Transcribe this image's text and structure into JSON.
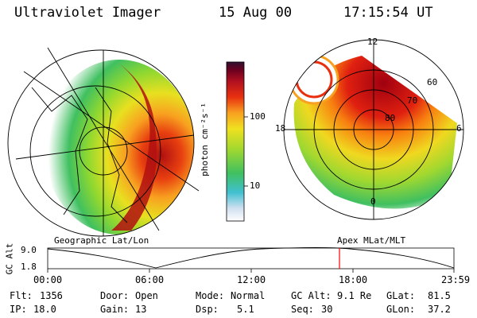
{
  "header": {
    "instrument": "Ultraviolet Imager",
    "date": "15 Aug 00",
    "time": "17:15:54 UT"
  },
  "panels": {
    "left_caption": "Geographic Lat/Lon",
    "right_caption": "Apex MLat/MLT",
    "right_mlt_labels": [
      "12",
      "18",
      "6",
      "0"
    ],
    "right_lat_labels": [
      "60",
      "70",
      "80"
    ]
  },
  "colorbar": {
    "unit_label": "photon cm⁻²s⁻¹",
    "ticks": [
      "100",
      "10"
    ]
  },
  "altitude_plot": {
    "axis_label": "GC Alt",
    "y_ticks": [
      "9.0",
      "1.8"
    ],
    "time_ticks": [
      "00:00",
      "06:00",
      "12:00",
      "18:00",
      "23:59"
    ],
    "current_time_marker": "17:15",
    "marker_color": "#ff0000"
  },
  "status": [
    {
      "label": "Flt:",
      "value": "1356"
    },
    {
      "label": "IP:",
      "value": "18.0"
    },
    {
      "label": "Door:",
      "value": "Open"
    },
    {
      "label": "Gain:",
      "value": "13"
    },
    {
      "label": "Mode:",
      "value": "Normal"
    },
    {
      "label": "Dsp:",
      "value": "5.1"
    },
    {
      "label": "GC Alt:",
      "value": "9.1 Re"
    },
    {
      "label": "Seq:",
      "value": "30"
    },
    {
      "label": "GLat:",
      "value": "81.5"
    },
    {
      "label": "GLon:",
      "value": "37.2"
    }
  ]
}
